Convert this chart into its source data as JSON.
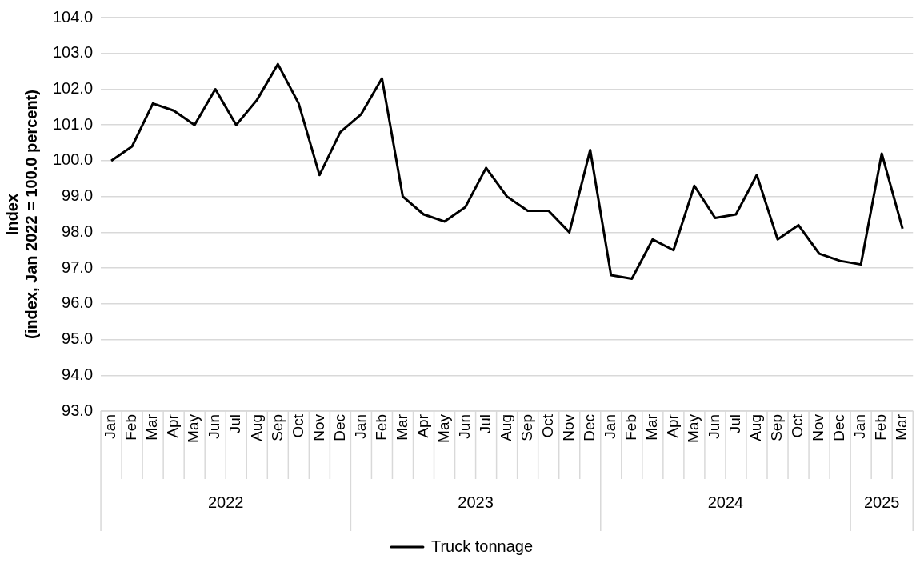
{
  "chart_data": {
    "type": "line",
    "ylabel": "Index\n(index, Jan 2022 = 100.0 percent)",
    "categories": [
      "Jan",
      "Feb",
      "Mar",
      "Apr",
      "May",
      "Jun",
      "Jul",
      "Aug",
      "Sep",
      "Oct",
      "Nov",
      "Dec",
      "Jan",
      "Feb",
      "Mar",
      "Apr",
      "May",
      "Jun",
      "Jul",
      "Aug",
      "Sep",
      "Oct",
      "Nov",
      "Dec",
      "Jan",
      "Feb",
      "Mar",
      "Apr",
      "May",
      "Jun",
      "Jul",
      "Aug",
      "Sep",
      "Oct",
      "Nov",
      "Dec",
      "Jan",
      "Feb",
      "Mar"
    ],
    "series": [
      {
        "name": "Truck tonnage",
        "color": "#000000",
        "values": [
          100.0,
          100.4,
          101.6,
          101.4,
          101.0,
          102.0,
          101.0,
          101.7,
          102.7,
          101.6,
          99.6,
          100.8,
          101.3,
          102.3,
          99.0,
          98.5,
          98.3,
          98.7,
          99.8,
          99.0,
          98.6,
          98.6,
          98.0,
          100.3,
          96.8,
          96.7,
          97.8,
          97.5,
          99.3,
          98.4,
          98.5,
          99.6,
          97.8,
          98.2,
          97.4,
          97.2,
          97.1,
          100.2,
          98.1
        ]
      }
    ],
    "annotations": [
      "2022",
      "2023",
      "2024",
      "2025"
    ],
    "ylim": [
      93,
      104
    ],
    "yticks": [
      {
        "value": 93,
        "label": "93.0"
      },
      {
        "value": 94,
        "label": "94.0"
      },
      {
        "value": 95,
        "label": "95.0"
      },
      {
        "value": 96,
        "label": "96.0"
      },
      {
        "value": 97,
        "label": "97.0"
      },
      {
        "value": 98,
        "label": "98.0"
      },
      {
        "value": 99,
        "label": "99.0"
      },
      {
        "value": 100,
        "label": "100.0"
      },
      {
        "value": 101,
        "label": "101.0"
      },
      {
        "value": 102,
        "label": "102.0"
      },
      {
        "value": 103,
        "label": "103.0"
      },
      {
        "value": 104,
        "label": "104.0"
      }
    ],
    "grid": "y",
    "legend": "bottom",
    "marker": "none",
    "line_style": "solid"
  }
}
